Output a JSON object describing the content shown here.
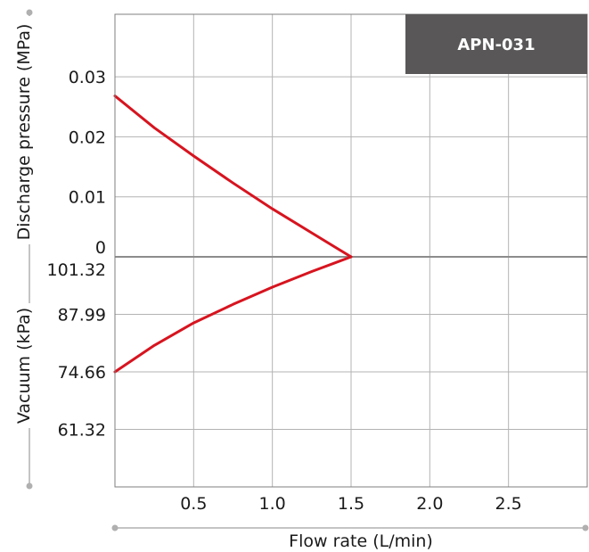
{
  "chart_data": {
    "type": "line",
    "badge": "APN-031",
    "xlabel": "Flow rate (L/min)",
    "ylabel_top": "Discharge pressure (MPa)",
    "ylabel_bottom": "Vacuum (kPa)",
    "xlim": [
      0,
      3.0
    ],
    "x_ticks": [
      {
        "value": 0.5,
        "label": "0.5"
      },
      {
        "value": 1.0,
        "label": "1.0"
      },
      {
        "value": 1.5,
        "label": "1.5"
      },
      {
        "value": 2.0,
        "label": "2.0"
      },
      {
        "value": 2.5,
        "label": "2.5"
      }
    ],
    "pressure_axis": {
      "unit": "MPa",
      "range": [
        0,
        0.04
      ],
      "ticks": [
        {
          "value": 0.03,
          "label": "0.03"
        },
        {
          "value": 0.02,
          "label": "0.02"
        },
        {
          "value": 0.01,
          "label": "0.01"
        },
        {
          "value": 0,
          "label": "0"
        }
      ]
    },
    "vacuum_axis": {
      "unit": "kPa",
      "range": [
        101.32,
        47.99
      ],
      "ticks": [
        {
          "value": 101.32,
          "label": "101.32"
        },
        {
          "value": 87.99,
          "label": "87.99"
        },
        {
          "value": 74.66,
          "label": "74.66"
        },
        {
          "value": 61.32,
          "label": "61.32"
        }
      ]
    },
    "grid": true,
    "series": [
      {
        "axis": "pressure",
        "color": "#d7141f",
        "x": [
          0,
          0.25,
          0.5,
          0.75,
          1.0,
          1.25,
          1.5
        ],
        "y": [
          0.0268,
          0.0215,
          0.0168,
          0.0123,
          0.008,
          0.004,
          0.0
        ]
      },
      {
        "axis": "vacuum",
        "color": "#d7141f",
        "x": [
          0,
          0.25,
          0.5,
          0.75,
          1.0,
          1.25,
          1.5
        ],
        "y": [
          74.66,
          80.8,
          86.0,
          90.3,
          94.3,
          97.9,
          101.32
        ]
      }
    ],
    "colors": {
      "grid": "#b3b3b3",
      "border": "#7f7f7f",
      "zero_line": "#8c8c8c",
      "badge_bg": "#595757",
      "axis_decoration": "#b0b0b0"
    }
  }
}
